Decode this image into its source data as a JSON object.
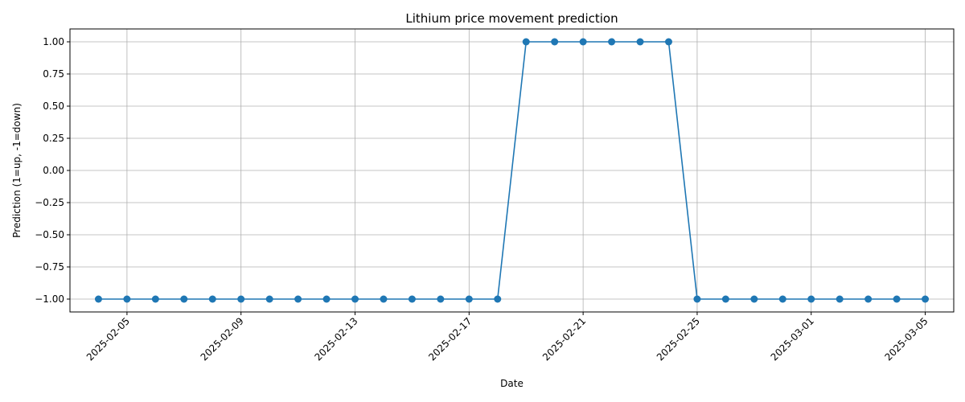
{
  "chart_data": {
    "type": "line",
    "title": "Lithium price movement prediction",
    "xlabel": "Date",
    "ylabel": "Prediction (1=up, -1=down)",
    "ylim": [
      -1.1,
      1.1
    ],
    "x_axis": "date",
    "xlim": [
      "2025-02-03",
      "2025-03-06"
    ],
    "grid": true,
    "color": "#1f77b4",
    "marker": "circle",
    "x_ticks": [
      "2025-02-05",
      "2025-02-09",
      "2025-02-13",
      "2025-02-17",
      "2025-02-21",
      "2025-02-25",
      "2025-03-01",
      "2025-03-05"
    ],
    "y_ticks": [
      -1.0,
      -0.75,
      -0.5,
      -0.25,
      0.0,
      0.25,
      0.5,
      0.75,
      1.0
    ],
    "y_tick_labels": [
      "−1.00",
      "−0.75",
      "−0.50",
      "−0.25",
      "0.00",
      "0.25",
      "0.50",
      "0.75",
      "1.00"
    ],
    "x": [
      "2025-02-04",
      "2025-02-05",
      "2025-02-06",
      "2025-02-07",
      "2025-02-08",
      "2025-02-09",
      "2025-02-10",
      "2025-02-11",
      "2025-02-12",
      "2025-02-13",
      "2025-02-14",
      "2025-02-15",
      "2025-02-16",
      "2025-02-17",
      "2025-02-18",
      "2025-02-19",
      "2025-02-20",
      "2025-02-21",
      "2025-02-22",
      "2025-02-23",
      "2025-02-24",
      "2025-02-25",
      "2025-02-26",
      "2025-02-27",
      "2025-02-28",
      "2025-03-01",
      "2025-03-02",
      "2025-03-03",
      "2025-03-04",
      "2025-03-05"
    ],
    "series": [
      {
        "values": [
          -1,
          -1,
          -1,
          -1,
          -1,
          -1,
          -1,
          -1,
          -1,
          -1,
          -1,
          -1,
          -1,
          -1,
          -1,
          1,
          1,
          1,
          1,
          1,
          1,
          -1,
          -1,
          -1,
          -1,
          -1,
          -1,
          -1,
          -1,
          -1
        ]
      }
    ]
  }
}
